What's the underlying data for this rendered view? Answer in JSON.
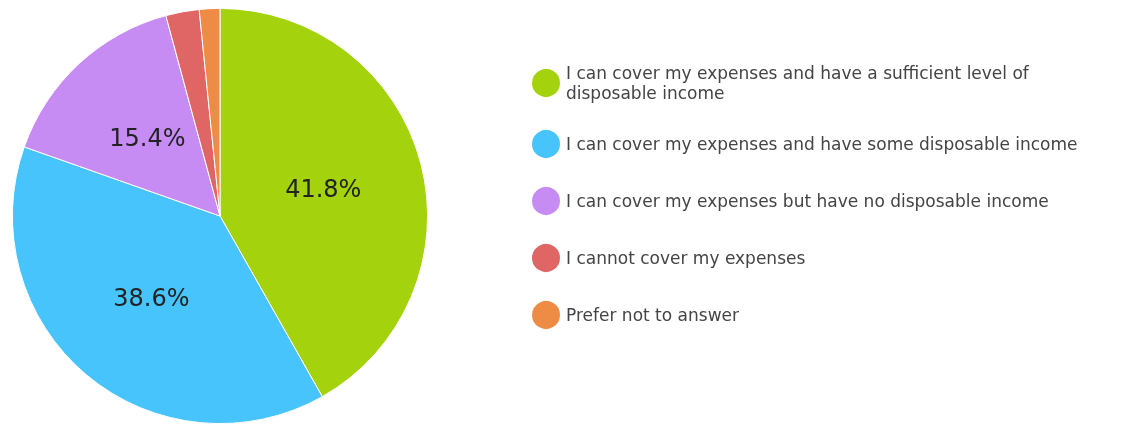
{
  "chart_data": {
    "type": "pie",
    "categories": [
      "I can cover my expenses and have a sufficient level of disposable income",
      "I can cover my expenses and have some disposable income",
      "I can cover my expenses but have no disposable income",
      "I cannot cover my expenses",
      "Prefer not to answer"
    ],
    "values": [
      41.8,
      38.6,
      15.4,
      2.6,
      1.6
    ],
    "colors": [
      "#a4d30d",
      "#46c4fb",
      "#c78cf4",
      "#e06666",
      "#ee8c45"
    ],
    "value_labels": [
      "41.8%",
      "38.6%",
      "15.4%",
      null,
      null
    ],
    "legend": "right"
  }
}
